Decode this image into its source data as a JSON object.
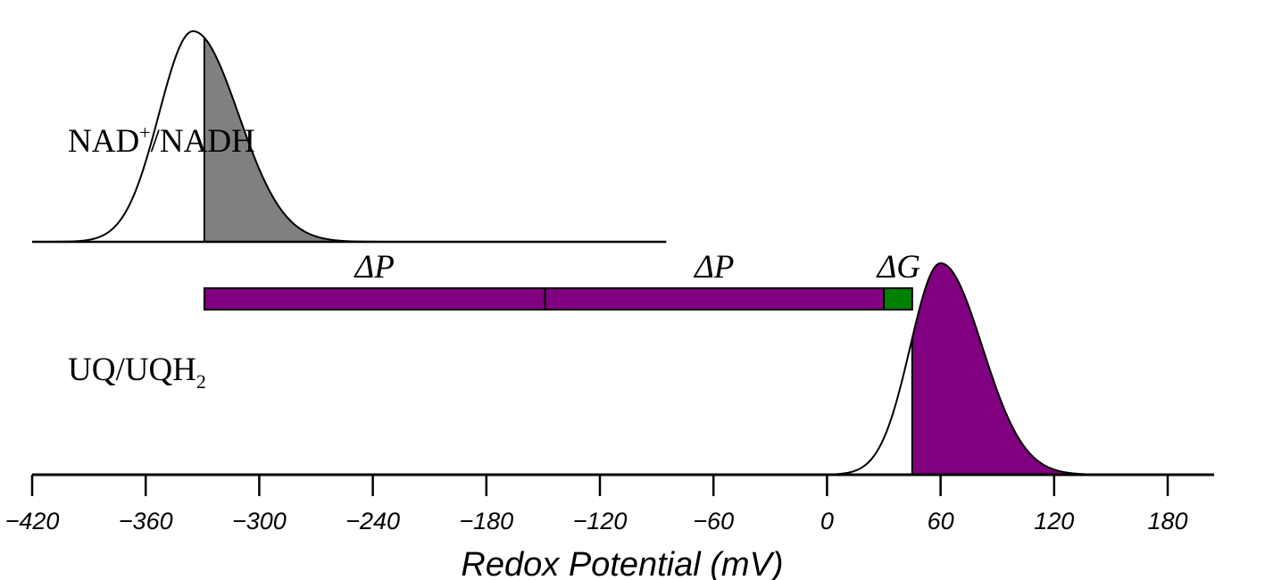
{
  "chart_data": {
    "type": "area",
    "title": "",
    "xlabel": "Redox Potential (mV)",
    "xlim": [
      -420,
      200
    ],
    "xticks": [
      -420,
      -360,
      -300,
      -240,
      -180,
      -120,
      -60,
      0,
      60,
      120,
      180
    ],
    "xtick_labels": [
      "−420",
      "−360",
      "−300",
      "−240",
      "−180",
      "−120",
      "−60",
      "0",
      "60",
      "120",
      "180"
    ],
    "curves": [
      {
        "name": "NAD+/NADH",
        "label_main": "NAD",
        "label_sup": "+",
        "label_rest": "/NADH",
        "peak_x": -335,
        "width_left": 18,
        "width_right": 24,
        "x_start": -420,
        "x_end": -85,
        "shade_from": -329,
        "shade_color": "#808080"
      },
      {
        "name": "UQ/UQH2",
        "label_main": "UQ/UQH",
        "label_sub": "2",
        "peak_x": 60,
        "width_left": 16,
        "width_right": 22,
        "x_start": -420,
        "x_end": 200,
        "shade_from": 45,
        "shade_color": "#800080"
      }
    ],
    "energy_bar": {
      "x_from": -329,
      "x_to": 45,
      "segments": [
        {
          "name": "ΔP",
          "from": -329,
          "to": -149,
          "color": "#800080"
        },
        {
          "name": "ΔP",
          "from": -149,
          "to": 30,
          "color": "#800080"
        },
        {
          "name": "ΔG",
          "from": 30,
          "to": 45,
          "color": "#008000"
        }
      ]
    }
  }
}
